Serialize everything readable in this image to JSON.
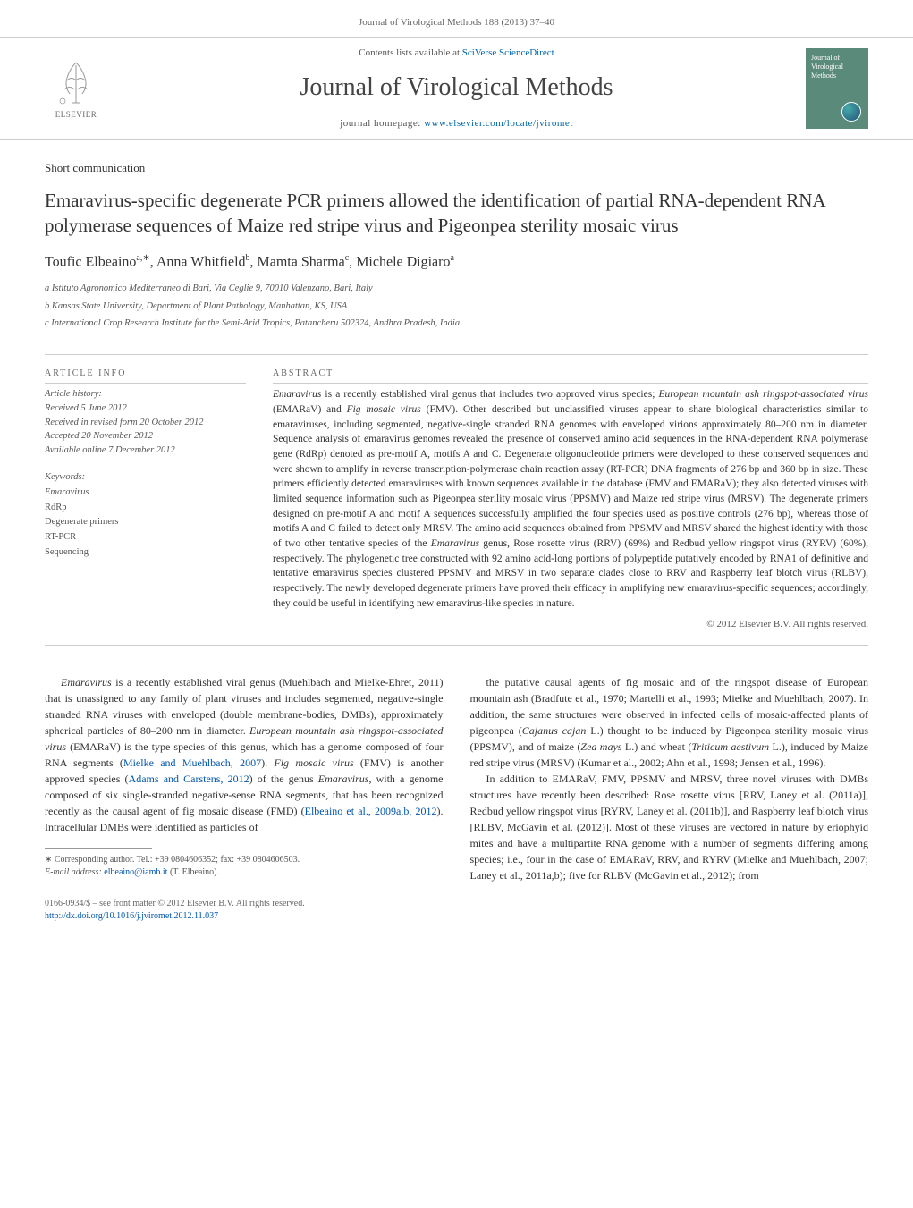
{
  "header": {
    "running_head": "Journal of Virological Methods 188 (2013) 37–40"
  },
  "masthead": {
    "elsevier_label": "ELSEVIER",
    "contents_prefix": "Contents lists available at ",
    "contents_link": "SciVerse ScienceDirect",
    "journal_name": "Journal of Virological Methods",
    "homepage_prefix": "journal homepage: ",
    "homepage_url": "www.elsevier.com/locate/jviromet",
    "cover_text": "Journal of Virological Methods"
  },
  "article": {
    "section_label": "Short communication",
    "title": "Emaravirus-specific degenerate PCR primers allowed the identification of partial RNA-dependent RNA polymerase sequences of Maize red stripe virus and Pigeonpea sterility mosaic virus",
    "authors_html": "Toufic Elbeaino<sup>a,∗</sup>, Anna Whitfield<sup>b</sup>, Mamta Sharma<sup>c</sup>, Michele Digiaro<sup>a</sup>",
    "affiliations": [
      "a Istituto Agronomico Mediterraneo di Bari, Via Ceglie 9, 70010 Valenzano, Bari, Italy",
      "b Kansas State University, Department of Plant Pathology, Manhattan, KS, USA",
      "c International Crop Research Institute for the Semi-Arid Tropics, Patancheru 502324, Andhra Pradesh, India"
    ]
  },
  "info": {
    "history_heading": "ARTICLE INFO",
    "history_label": "Article history:",
    "history_lines": [
      "Received 5 June 2012",
      "Received in revised form 20 October 2012",
      "Accepted 20 November 2012",
      "Available online 7 December 2012"
    ],
    "keywords_label": "Keywords:",
    "keywords": [
      {
        "text": "Emaravirus",
        "italic": true
      },
      {
        "text": "RdRp",
        "italic": false
      },
      {
        "text": "Degenerate primers",
        "italic": false
      },
      {
        "text": "RT-PCR",
        "italic": false
      },
      {
        "text": "Sequencing",
        "italic": false
      }
    ]
  },
  "abstract": {
    "heading": "ABSTRACT",
    "text": "Emaravirus is a recently established viral genus that includes two approved virus species; European mountain ash ringspot-associated virus (EMARaV) and Fig mosaic virus (FMV). Other described but unclassified viruses appear to share biological characteristics similar to emaraviruses, including segmented, negative-single stranded RNA genomes with enveloped virions approximately 80–200 nm in diameter. Sequence analysis of emaravirus genomes revealed the presence of conserved amino acid sequences in the RNA-dependent RNA polymerase gene (RdRp) denoted as pre-motif A, motifs A and C. Degenerate oligonucleotide primers were developed to these conserved sequences and were shown to amplify in reverse transcription-polymerase chain reaction assay (RT-PCR) DNA fragments of 276 bp and 360 bp in size. These primers efficiently detected emaraviruses with known sequences available in the database (FMV and EMARaV); they also detected viruses with limited sequence information such as Pigeonpea sterility mosaic virus (PPSMV) and Maize red stripe virus (MRSV). The degenerate primers designed on pre-motif A and motif A sequences successfully amplified the four species used as positive controls (276 bp), whereas those of motifs A and C failed to detect only MRSV. The amino acid sequences obtained from PPSMV and MRSV shared the highest identity with those of two other tentative species of the Emaravirus genus, Rose rosette virus (RRV) (69%) and Redbud yellow ringspot virus (RYRV) (60%), respectively. The phylogenetic tree constructed with 92 amino acid-long portions of polypeptide putatively encoded by RNA1 of definitive and tentative emaravirus species clustered PPSMV and MRSV in two separate clades close to RRV and Raspberry leaf blotch virus (RLBV), respectively. The newly developed degenerate primers have proved their efficacy in amplifying new emaravirus-specific sequences; accordingly, they could be useful in identifying new emaravirus-like species in nature.",
    "copyright": "© 2012 Elsevier B.V. All rights reserved."
  },
  "body": {
    "left": "Emaravirus is a recently established viral genus (Muehlbach and Mielke-Ehret, 2011) that is unassigned to any family of plant viruses and includes segmented, negative-single stranded RNA viruses with enveloped (double membrane-bodies, DMBs), approximately spherical particles of 80–200 nm in diameter. European mountain ash ringspot-associated virus (EMARaV) is the type species of this genus, which has a genome composed of four RNA segments (Mielke and Muehlbach, 2007). Fig mosaic virus (FMV) is another approved species (Adams and Carstens, 2012) of the genus Emaravirus, with a genome composed of six single-stranded negative-sense RNA segments, that has been recognized recently as the causal agent of fig mosaic disease (FMD) (Elbeaino et al., 2009a,b, 2012). Intracellular DMBs were identified as particles of",
    "right": "the putative causal agents of fig mosaic and of the ringspot disease of European mountain ash (Bradfute et al., 1970; Martelli et al., 1993; Mielke and Muehlbach, 2007). In addition, the same structures were observed in infected cells of mosaic-affected plants of pigeonpea (Cajanus cajan L.) thought to be induced by Pigeonpea sterility mosaic virus (PPSMV), and of maize (Zea mays L.) and wheat (Triticum aestivum L.), induced by Maize red stripe virus (MRSV) (Kumar et al., 2002; Ahn et al., 1998; Jensen et al., 1996).|||In addition to EMARaV, FMV, PPSMV and MRSV, three novel viruses with DMBs structures have recently been described: Rose rosette virus [RRV, Laney et al. (2011a)], Redbud yellow ringspot virus [RYRV, Laney et al. (2011b)], and Raspberry leaf blotch virus [RLBV, McGavin et al. (2012)]. Most of these viruses are vectored in nature by eriophyid mites and have a multipartite RNA genome with a number of segments differing among species; i.e., four in the case of EMARaV, RRV, and RYRV (Mielke and Muehlbach, 2007; Laney et al., 2011a,b); five for RLBV (McGavin et al., 2012); from"
  },
  "footnote": {
    "corresponding": "∗ Corresponding author. Tel.: +39 0804606352; fax: +39 0804606503.",
    "email_label": "E-mail address: ",
    "email": "elbeaino@iamb.it",
    "email_person": " (T. Elbeaino)."
  },
  "footer": {
    "line1": "0166-0934/$ – see front matter © 2012 Elsevier B.V. All rights reserved.",
    "doi": "http://dx.doi.org/10.1016/j.jviromet.2012.11.037"
  },
  "colors": {
    "link": "#0055aa",
    "text": "#333333",
    "muted": "#666666",
    "rule": "#cccccc",
    "cover_bg": "#5a8a7a"
  }
}
